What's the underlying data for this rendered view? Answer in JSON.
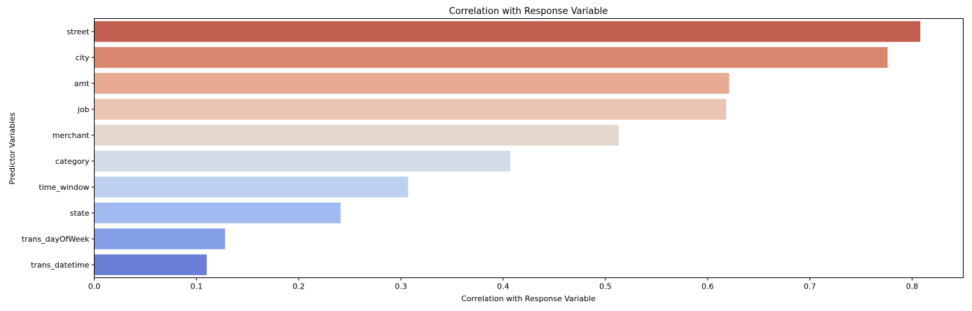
{
  "chart_data": {
    "type": "bar",
    "orientation": "horizontal",
    "title": "Correlation with Response Variable",
    "xlabel": "Correlation with Response Variable",
    "ylabel": "Predictor Variables",
    "categories": [
      "street",
      "city",
      "amt",
      "job",
      "merchant",
      "category",
      "time_window",
      "state",
      "trans_dayOfWeek",
      "trans_datetime"
    ],
    "values": [
      0.808,
      0.776,
      0.621,
      0.618,
      0.513,
      0.407,
      0.307,
      0.241,
      0.128,
      0.11
    ],
    "colors": [
      "#c25f51",
      "#da8770",
      "#e7a991",
      "#ecc4b2",
      "#e3d7ce",
      "#d3dae8",
      "#bdd0f0",
      "#a1baf2",
      "#839ee6",
      "#6a7fd5"
    ],
    "xlim": [
      0,
      0.85
    ],
    "xticks": [
      0,
      0.1,
      0.2,
      0.3,
      0.4,
      0.5,
      0.6,
      0.7,
      0.8
    ],
    "xtick_labels": [
      "0.0",
      "0.1",
      "0.2",
      "0.3",
      "0.4",
      "0.5",
      "0.6",
      "0.7",
      "0.8"
    ],
    "grid": false,
    "legend": "none"
  }
}
